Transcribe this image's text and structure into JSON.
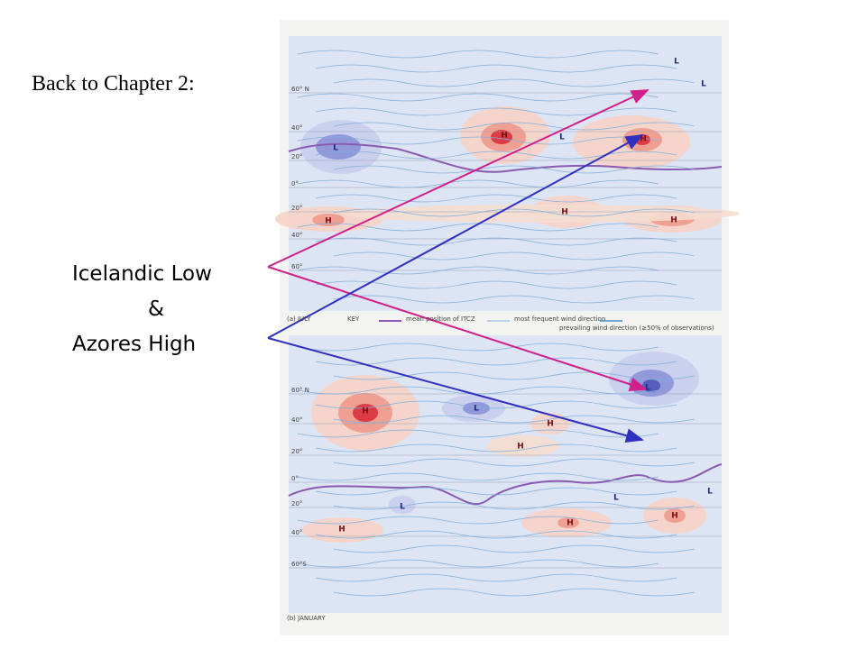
{
  "header": {
    "link": "Back to Chapter 2:"
  },
  "callout": {
    "lines": [
      "Icelandic Low",
      "&",
      "Azores High"
    ]
  },
  "figure": {
    "july": {
      "label": "(a) JULY",
      "pressure_labels": [
        "L",
        "H",
        "L",
        "H",
        "H",
        "H",
        "H",
        "L",
        "L"
      ],
      "lat_labels": [
        "60° N",
        "40°",
        "20°",
        "0°",
        "20°",
        "40°",
        "60°"
      ]
    },
    "key": {
      "title": "KEY",
      "itcz": "mean position of ITCZ",
      "frequent": "most frequent wind direction",
      "prevailing": "prevailing wind direction (≥50% of observations)"
    },
    "january": {
      "label": "(b) JANUARY",
      "pressure_labels": [
        "H",
        "L",
        "L",
        "H",
        "H",
        "L",
        "L",
        "L",
        "H",
        "H",
        "H"
      ],
      "lat_labels": [
        "60° N",
        "40°",
        "20°",
        "0°",
        "20°",
        "40°",
        "60°S"
      ]
    }
  }
}
